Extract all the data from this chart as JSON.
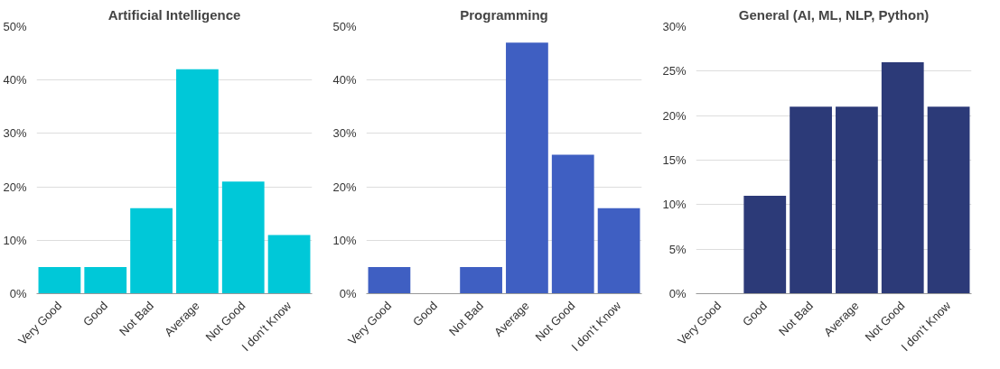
{
  "chart_data": [
    {
      "type": "bar",
      "title": "Artificial Intelligence",
      "categories": [
        "Very Good",
        "Good",
        "Not Bad",
        "Average",
        "Not Good",
        "I don't Know"
      ],
      "values": [
        5,
        5,
        16,
        42,
        21,
        11
      ],
      "color": "#00c8d8",
      "ylim": [
        0,
        50
      ],
      "yticks": [
        {
          "value": 0,
          "label": "0%"
        },
        {
          "value": 10,
          "label": "10%"
        },
        {
          "value": 20,
          "label": "20%"
        },
        {
          "value": 30,
          "label": "30%"
        },
        {
          "value": 40,
          "label": "40%"
        },
        {
          "value": 50,
          "label": "50%"
        }
      ],
      "grid": "y"
    },
    {
      "type": "bar",
      "title": "Programming",
      "categories": [
        "Very Good",
        "Good",
        "Not Bad",
        "Average",
        "Not Good",
        "I don't Know"
      ],
      "values": [
        5,
        0,
        5,
        47,
        26,
        16
      ],
      "color": "#3f5fc2",
      "ylim": [
        0,
        50
      ],
      "yticks": [
        {
          "value": 0,
          "label": "0%"
        },
        {
          "value": 10,
          "label": "10%"
        },
        {
          "value": 20,
          "label": "20%"
        },
        {
          "value": 30,
          "label": "30%"
        },
        {
          "value": 40,
          "label": "40%"
        },
        {
          "value": 50,
          "label": "50%"
        }
      ],
      "grid": "y"
    },
    {
      "type": "bar",
      "title": "General (AI, ML, NLP, Python)",
      "categories": [
        "Very Good",
        "Good",
        "Not Bad",
        "Average",
        "Not Good",
        "I don't Know"
      ],
      "values": [
        0,
        11,
        21,
        21,
        26,
        21
      ],
      "color": "#2c3a78",
      "ylim": [
        0,
        30
      ],
      "yticks": [
        {
          "value": 0,
          "label": "0%"
        },
        {
          "value": 5,
          "label": "5%"
        },
        {
          "value": 10,
          "label": "10%"
        },
        {
          "value": 15,
          "label": "15%"
        },
        {
          "value": 20,
          "label": "20%"
        },
        {
          "value": 25,
          "label": "25%"
        },
        {
          "value": 30,
          "label": "30%"
        }
      ],
      "grid": "y"
    }
  ]
}
